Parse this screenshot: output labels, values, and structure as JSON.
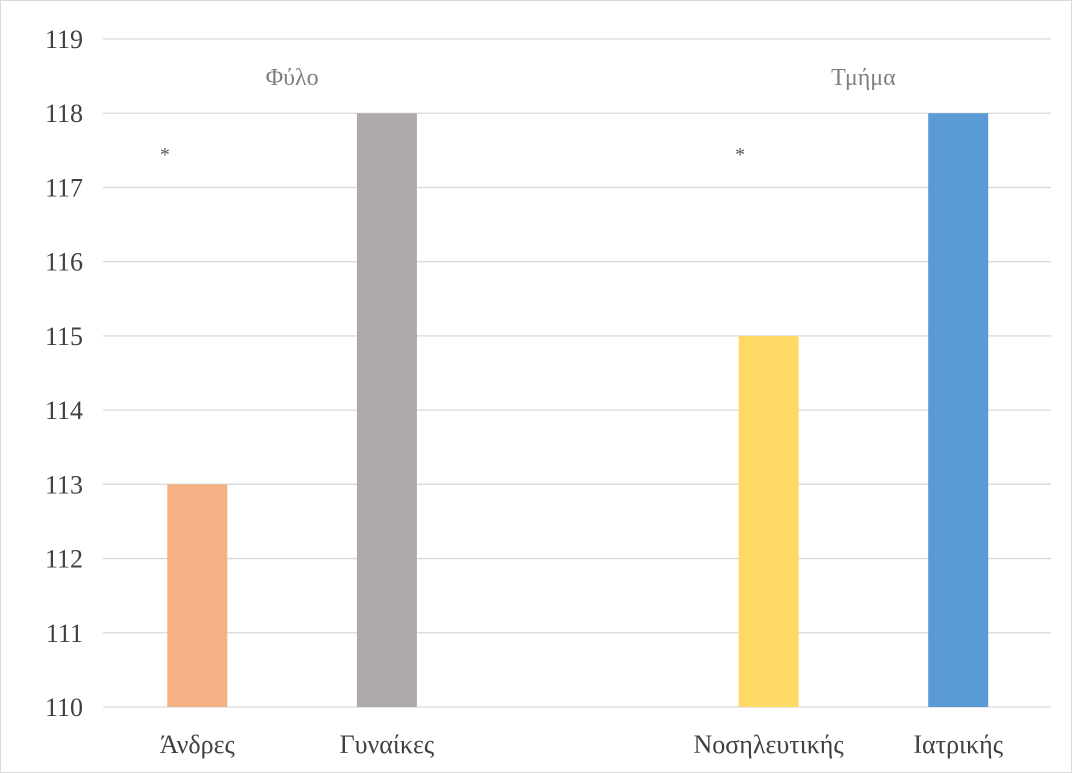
{
  "chart_data": {
    "type": "bar",
    "categories": [
      "Άνδρες",
      "Γυναίκες",
      "Νοσηλευτικής",
      "Ιατρικής"
    ],
    "values": [
      113,
      118,
      115,
      118
    ],
    "colors": [
      "#f4b183",
      "#aeaaaa",
      "#ffd966",
      "#5b9bd5"
    ],
    "groups": [
      {
        "label": "Φύλο",
        "categories": [
          0,
          1
        ],
        "annotation": "*"
      },
      {
        "label": "Τμήμα",
        "categories": [
          2,
          3
        ],
        "annotation": "*"
      }
    ],
    "ylim": [
      110,
      119
    ],
    "yticks": [
      "110",
      "111",
      "112",
      "113",
      "114",
      "115",
      "116",
      "117",
      "118",
      "119"
    ],
    "grid": true,
    "legend": "none",
    "title": "",
    "xlabel": "",
    "ylabel": ""
  }
}
